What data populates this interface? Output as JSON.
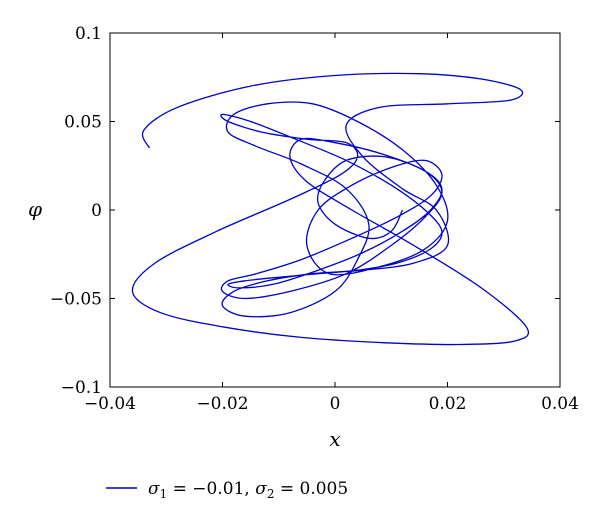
{
  "chart_data": {
    "type": "line",
    "xlabel": "x",
    "ylabel": "φ",
    "xlim": [
      -0.04,
      0.04
    ],
    "ylim": [
      -0.1,
      0.1
    ],
    "xticks": [
      "−0.04",
      "−0.02",
      "0",
      "0.02",
      "0.04"
    ],
    "yticks": [
      "−0.1",
      "−0.05",
      "0",
      "0.05",
      "0.1"
    ],
    "grid": false,
    "legend_position": "bottom-left",
    "series": [
      {
        "name": "σ1 = −0.01, σ2 = 0.005",
        "color": "#0000cc",
        "legend": {
          "sigma1_symbol": "σ",
          "sigma1_sub": "1",
          "sigma1_value": " = −0.01, ",
          "sigma2_symbol": "σ",
          "sigma2_sub": "2",
          "sigma2_value": " = 0.005"
        },
        "x": [
          -0.033,
          -0.034,
          -0.028,
          -0.015,
          0.0,
          0.015,
          0.026,
          0.033,
          0.031,
          0.02,
          0.008,
          0.002,
          0.005,
          0.012,
          0.018,
          0.02,
          0.014,
          0.005,
          -0.004,
          -0.012,
          -0.018,
          -0.02,
          -0.016,
          -0.008,
          0.0,
          0.004,
          0.006,
          0.002,
          -0.006,
          -0.014,
          -0.019,
          -0.018,
          -0.012,
          -0.004,
          0.004,
          0.012,
          0.018,
          0.02,
          0.016,
          0.008,
          -0.001,
          -0.005,
          -0.003,
          0.003,
          0.01,
          0.016,
          0.019,
          0.017,
          0.011,
          0.003,
          -0.006,
          -0.014,
          -0.019,
          -0.02,
          -0.016,
          -0.008,
          0.002,
          0.01,
          0.016,
          0.019,
          0.016,
          0.008,
          0.0,
          -0.006,
          -0.008,
          -0.005,
          0.003,
          0.014,
          0.026,
          0.034,
          0.032,
          0.022,
          0.009,
          -0.006,
          -0.02,
          -0.031,
          -0.036,
          -0.032,
          -0.021,
          -0.008,
          0.001,
          0.004,
          0.002,
          -0.005,
          -0.013,
          -0.019,
          -0.02,
          -0.015,
          -0.007,
          0.002,
          0.01,
          0.016,
          0.019,
          0.017,
          0.011,
          0.004,
          -0.003,
          -0.01,
          -0.016,
          -0.019,
          -0.017,
          -0.011,
          -0.003,
          0.005,
          0.012,
          0.017,
          0.019,
          0.016,
          0.009,
          0.002,
          -0.002,
          -0.003,
          0.0,
          0.006,
          0.01,
          0.012
        ],
        "y": [
          0.035,
          0.045,
          0.058,
          0.07,
          0.076,
          0.077,
          0.074,
          0.068,
          0.062,
          0.06,
          0.058,
          0.048,
          0.03,
          0.012,
          0.0,
          -0.02,
          -0.03,
          -0.034,
          -0.036,
          -0.04,
          -0.046,
          -0.054,
          -0.06,
          -0.058,
          -0.046,
          -0.028,
          -0.008,
          0.012,
          0.026,
          0.036,
          0.044,
          0.054,
          0.06,
          0.06,
          0.05,
          0.034,
          0.014,
          -0.006,
          -0.022,
          -0.032,
          -0.036,
          -0.02,
          0.0,
          0.014,
          0.024,
          0.028,
          0.02,
          0.008,
          -0.004,
          -0.016,
          -0.028,
          -0.036,
          -0.04,
          -0.046,
          -0.05,
          -0.046,
          -0.036,
          -0.02,
          -0.004,
          0.01,
          0.022,
          0.032,
          0.038,
          0.04,
          0.03,
          0.016,
          0.0,
          -0.02,
          -0.044,
          -0.066,
          -0.074,
          -0.076,
          -0.075,
          -0.072,
          -0.066,
          -0.058,
          -0.046,
          -0.03,
          -0.012,
          0.006,
          0.02,
          0.03,
          0.038,
          0.04,
          0.044,
          0.05,
          0.054,
          0.05,
          0.04,
          0.028,
          0.014,
          0.0,
          -0.012,
          -0.022,
          -0.03,
          -0.034,
          -0.036,
          -0.038,
          -0.04,
          -0.042,
          -0.044,
          -0.042,
          -0.034,
          -0.024,
          -0.012,
          0.0,
          0.012,
          0.022,
          0.03,
          0.028,
          0.016,
          0.004,
          -0.008,
          -0.016,
          -0.012,
          0.0
        ]
      }
    ]
  }
}
